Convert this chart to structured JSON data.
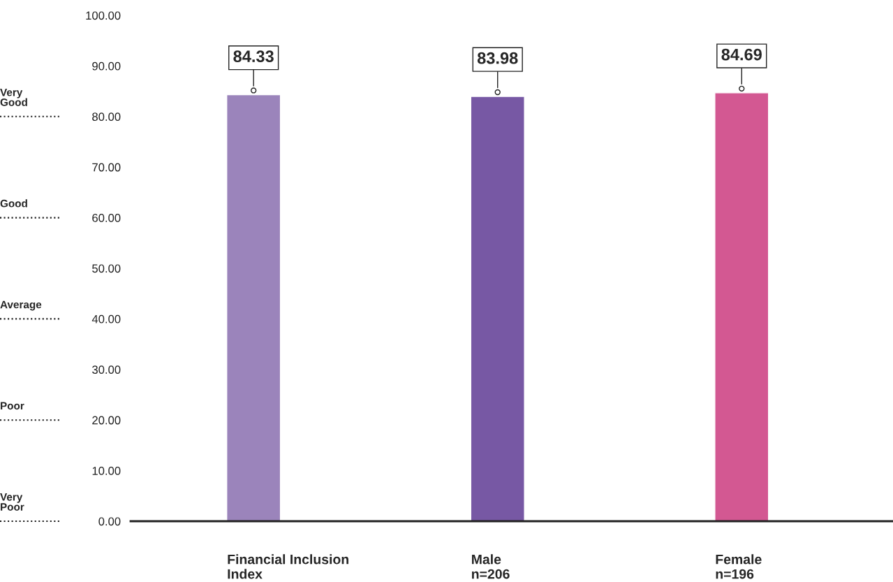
{
  "chart_data": {
    "type": "bar",
    "categories": [
      "Financial Inclusion\nIndex",
      "Male\nn=206",
      "Female\nn=196"
    ],
    "values": [
      84.33,
      83.98,
      84.69
    ],
    "colors": [
      "#9b84bb",
      "#7758a4",
      "#d35892"
    ],
    "value_labels": [
      "84.33",
      "83.98",
      "84.69"
    ],
    "ylim": [
      0,
      100
    ],
    "yticks": [
      {
        "value": 0,
        "label": "0.00"
      },
      {
        "value": 10,
        "label": "10.00"
      },
      {
        "value": 20,
        "label": "20.00"
      },
      {
        "value": 30,
        "label": "30.00"
      },
      {
        "value": 40,
        "label": "40.00"
      },
      {
        "value": 50,
        "label": "50.00"
      },
      {
        "value": 60,
        "label": "60.00"
      },
      {
        "value": 70,
        "label": "70.00"
      },
      {
        "value": 80,
        "label": "80.00"
      },
      {
        "value": 90,
        "label": "90.00"
      },
      {
        "value": 100,
        "label": "100.00"
      }
    ],
    "ref_lines": [
      {
        "axis": "y",
        "value": 80,
        "label": "Very\nGood",
        "line_style": "dotted",
        "color": "#1a1a1a"
      },
      {
        "axis": "y",
        "value": 60,
        "label": "Good",
        "line_style": "dotted",
        "color": "#1a1a1a"
      },
      {
        "axis": "y",
        "value": 40,
        "label": "Average",
        "line_style": "dotted",
        "color": "#1a1a1a"
      },
      {
        "axis": "y",
        "value": 20,
        "label": "Poor",
        "line_style": "dotted",
        "color": "#1a1a1a"
      },
      {
        "axis": "y",
        "value": 0,
        "label": "Very\nPoor",
        "line_style": "dotted",
        "color": "#1a1a1a"
      }
    ],
    "grid": false,
    "legend": false
  }
}
